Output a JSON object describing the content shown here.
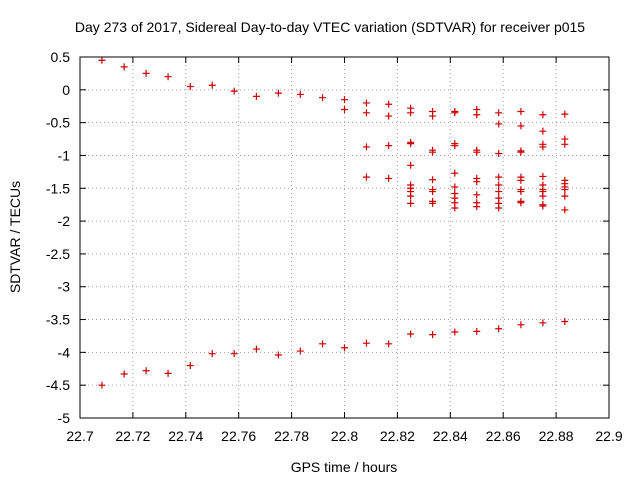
{
  "chart_data": {
    "type": "scatter",
    "title": "Day 273 of 2017, Sidereal Day-to-day VTEC variation (SDTVAR) for receiver p015",
    "xlabel": "GPS time / hours",
    "ylabel": "SDTVAR / TECUs",
    "xlim": [
      22.7,
      22.9
    ],
    "ylim": [
      -5,
      0.5
    ],
    "grid": true,
    "marker": "+",
    "color": "#cc0000",
    "x_ticks": [
      22.7,
      22.72,
      22.74,
      22.76,
      22.78,
      22.8,
      22.82,
      22.84,
      22.86,
      22.88,
      22.9
    ],
    "x_tick_labels": [
      "22.7",
      "22.72",
      "22.74",
      "22.76",
      "22.78",
      "22.8",
      "22.82",
      "22.84",
      "22.86",
      "22.88",
      "22.9"
    ],
    "y_ticks": [
      0.5,
      0,
      -0.5,
      -1,
      -1.5,
      -2,
      -2.5,
      -3,
      -3.5,
      -4,
      -4.5,
      -5
    ],
    "y_tick_labels": [
      "0.5",
      "0",
      "-0.5",
      "-1",
      "-1.5",
      "-2",
      "-2.5",
      "-3",
      "-3.5",
      "-4",
      "-4.5",
      "-5"
    ],
    "series": [
      {
        "name": "SDTVAR",
        "points": [
          [
            22.7083,
            0.45
          ],
          [
            22.7167,
            0.35
          ],
          [
            22.725,
            0.25
          ],
          [
            22.7333,
            0.2
          ],
          [
            22.7417,
            0.05
          ],
          [
            22.75,
            0.07
          ],
          [
            22.7583,
            -0.02
          ],
          [
            22.7667,
            -0.1
          ],
          [
            22.775,
            -0.05
          ],
          [
            22.7833,
            -0.07
          ],
          [
            22.7917,
            -0.12
          ],
          [
            22.8,
            -0.15
          ],
          [
            22.8,
            -0.3
          ],
          [
            22.8083,
            -0.2
          ],
          [
            22.8083,
            -0.35
          ],
          [
            22.8083,
            -0.87
          ],
          [
            22.8083,
            -1.33
          ],
          [
            22.8167,
            -0.22
          ],
          [
            22.8167,
            -0.4
          ],
          [
            22.8167,
            -0.85
          ],
          [
            22.8167,
            -1.35
          ],
          [
            22.825,
            -0.28
          ],
          [
            22.825,
            -0.35
          ],
          [
            22.825,
            -0.8
          ],
          [
            22.825,
            -0.82
          ],
          [
            22.825,
            -1.15
          ],
          [
            22.825,
            -1.45
          ],
          [
            22.825,
            -1.5
          ],
          [
            22.825,
            -1.55
          ],
          [
            22.825,
            -1.62
          ],
          [
            22.825,
            -1.73
          ],
          [
            22.8333,
            -0.33
          ],
          [
            22.8333,
            -0.4
          ],
          [
            22.8333,
            -0.92
          ],
          [
            22.8333,
            -0.95
          ],
          [
            22.8333,
            -1.37
          ],
          [
            22.8333,
            -1.52
          ],
          [
            22.8333,
            -1.55
          ],
          [
            22.8333,
            -1.7
          ],
          [
            22.8333,
            -1.73
          ],
          [
            22.8417,
            -0.33
          ],
          [
            22.8417,
            -0.35
          ],
          [
            22.8417,
            -0.82
          ],
          [
            22.8417,
            -0.85
          ],
          [
            22.8417,
            -1.27
          ],
          [
            22.8417,
            -1.48
          ],
          [
            22.8417,
            -1.58
          ],
          [
            22.8417,
            -1.65
          ],
          [
            22.8417,
            -1.72
          ],
          [
            22.8417,
            -1.8
          ],
          [
            22.85,
            -0.3
          ],
          [
            22.85,
            -0.38
          ],
          [
            22.85,
            -0.92
          ],
          [
            22.85,
            -0.95
          ],
          [
            22.85,
            -1.35
          ],
          [
            22.85,
            -1.4
          ],
          [
            22.85,
            -1.6
          ],
          [
            22.85,
            -1.72
          ],
          [
            22.85,
            -1.78
          ],
          [
            22.8583,
            -0.35
          ],
          [
            22.8583,
            -0.52
          ],
          [
            22.8583,
            -0.97
          ],
          [
            22.8583,
            -1.33
          ],
          [
            22.8583,
            -1.45
          ],
          [
            22.8583,
            -1.55
          ],
          [
            22.8583,
            -1.65
          ],
          [
            22.8583,
            -1.73
          ],
          [
            22.8583,
            -1.8
          ],
          [
            22.8667,
            -0.33
          ],
          [
            22.8667,
            -0.55
          ],
          [
            22.8667,
            -0.93
          ],
          [
            22.8667,
            -0.95
          ],
          [
            22.8667,
            -1.33
          ],
          [
            22.8667,
            -1.38
          ],
          [
            22.8667,
            -1.52
          ],
          [
            22.8667,
            -1.55
          ],
          [
            22.8667,
            -1.7
          ],
          [
            22.8667,
            -1.72
          ],
          [
            22.875,
            -0.38
          ],
          [
            22.875,
            -0.63
          ],
          [
            22.875,
            -0.83
          ],
          [
            22.875,
            -0.87
          ],
          [
            22.875,
            -1.32
          ],
          [
            22.875,
            -1.45
          ],
          [
            22.875,
            -1.52
          ],
          [
            22.875,
            -1.55
          ],
          [
            22.875,
            -1.62
          ],
          [
            22.875,
            -1.75
          ],
          [
            22.875,
            -1.77
          ],
          [
            22.8833,
            -0.37
          ],
          [
            22.8833,
            -0.75
          ],
          [
            22.8833,
            -0.83
          ],
          [
            22.8833,
            -1.38
          ],
          [
            22.8833,
            -1.43
          ],
          [
            22.8833,
            -1.48
          ],
          [
            22.8833,
            -1.52
          ],
          [
            22.8833,
            -1.62
          ],
          [
            22.8833,
            -1.83
          ],
          [
            22.7083,
            -4.5
          ],
          [
            22.7167,
            -4.33
          ],
          [
            22.725,
            -4.28
          ],
          [
            22.7333,
            -4.32
          ],
          [
            22.7417,
            -4.2
          ],
          [
            22.75,
            -4.02
          ],
          [
            22.7583,
            -4.02
          ],
          [
            22.7667,
            -3.95
          ],
          [
            22.775,
            -4.04
          ],
          [
            22.7833,
            -3.98
          ],
          [
            22.7917,
            -3.87
          ],
          [
            22.8,
            -3.93
          ],
          [
            22.8083,
            -3.86
          ],
          [
            22.8167,
            -3.87
          ],
          [
            22.825,
            -3.72
          ],
          [
            22.8333,
            -3.73
          ],
          [
            22.8417,
            -3.69
          ],
          [
            22.85,
            -3.68
          ],
          [
            22.8583,
            -3.64
          ],
          [
            22.8667,
            -3.58
          ],
          [
            22.875,
            -3.55
          ],
          [
            22.8833,
            -3.53
          ]
        ]
      }
    ]
  }
}
